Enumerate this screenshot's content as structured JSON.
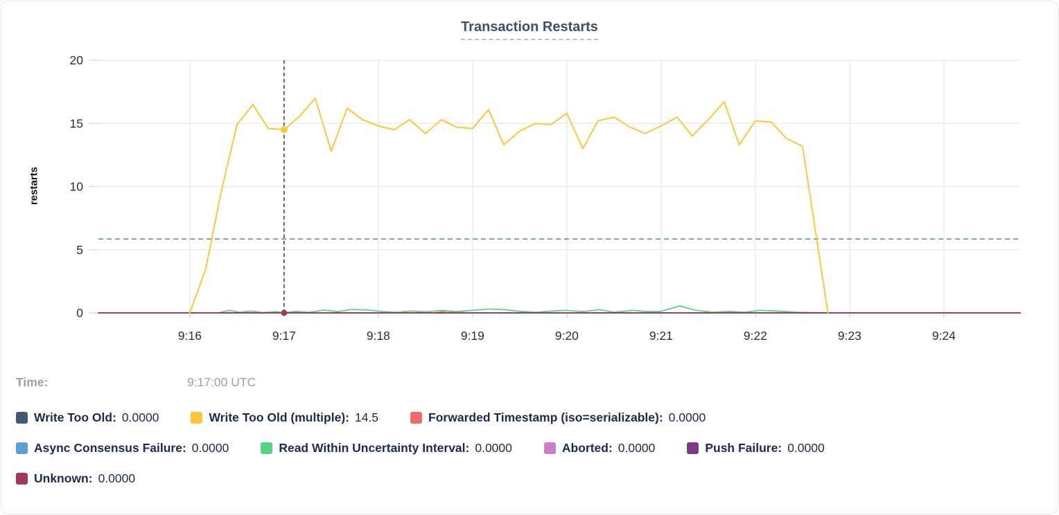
{
  "chart_data": {
    "type": "line",
    "title": "Transaction Restarts",
    "xlabel": "",
    "ylabel": "restarts",
    "ylim": [
      0,
      20
    ],
    "xlim": [
      15.03,
      24.81
    ],
    "grid": true,
    "y_ticks": [
      {
        "v": 0,
        "label": "0"
      },
      {
        "v": 5,
        "label": "5"
      },
      {
        "v": 10,
        "label": "10"
      },
      {
        "v": 15,
        "label": "15"
      },
      {
        "v": 20,
        "label": "20"
      }
    ],
    "x_ticks": [
      {
        "v": 16,
        "label": "9:16"
      },
      {
        "v": 17,
        "label": "9:17"
      },
      {
        "v": 18,
        "label": "9:18"
      },
      {
        "v": 19,
        "label": "9:19"
      },
      {
        "v": 20,
        "label": "9:20"
      },
      {
        "v": 21,
        "label": "9:21"
      },
      {
        "v": 22,
        "label": "9:22"
      },
      {
        "v": 23,
        "label": "9:23"
      },
      {
        "v": 24,
        "label": "9:24"
      }
    ],
    "threshold_line": {
      "value": 5.85,
      "style": "dashed",
      "color": "#5d82aa"
    },
    "crosshair": {
      "x": 17,
      "time": "9:17:00 UTC",
      "color": "#2c4a63",
      "points": [
        {
          "x": 17,
          "y": 14.5,
          "color": "#fdc53a",
          "r": 5
        },
        {
          "x": 17,
          "y": 0,
          "color": "#a23c55",
          "r": 4.5
        }
      ]
    },
    "series": [
      {
        "name": "Async Consensus Failure",
        "color": "#5c9fd8",
        "width": 1.6,
        "points": [
          [
            15.03,
            0
          ],
          [
            24.81,
            0
          ]
        ]
      },
      {
        "name": "Write Too Old",
        "color": "#475970",
        "width": 1.6,
        "points": [
          [
            15.03,
            0
          ],
          [
            24.81,
            0
          ]
        ]
      },
      {
        "name": "Aborted",
        "color": "#ce7dc8",
        "width": 1.6,
        "points": [
          [
            15.03,
            0
          ],
          [
            24.81,
            0
          ]
        ]
      },
      {
        "name": "Push Failure",
        "color": "#7c3a80",
        "width": 1.6,
        "points": [
          [
            15.03,
            0
          ],
          [
            24.81,
            0
          ]
        ]
      },
      {
        "name": "Forwarded Timestamp (iso=serializable)",
        "color": "#ef6c6c",
        "width": 1.8,
        "points": [
          [
            15.03,
            0
          ],
          [
            18.6,
            0
          ],
          [
            18.72,
            0.15
          ],
          [
            18.85,
            0.05
          ],
          [
            18.95,
            0
          ],
          [
            24.81,
            0
          ]
        ]
      },
      {
        "name": "Read Within Uncertainty Interval",
        "color": "#55d38a",
        "width": 1.8,
        "points": [
          [
            15.03,
            0
          ],
          [
            16.3,
            0
          ],
          [
            16.42,
            0.2
          ],
          [
            16.53,
            0.05
          ],
          [
            16.65,
            0.15
          ],
          [
            16.78,
            0.02
          ],
          [
            16.92,
            0.1
          ],
          [
            17,
            0
          ],
          [
            17.12,
            0.12
          ],
          [
            17.27,
            0.05
          ],
          [
            17.42,
            0.22
          ],
          [
            17.57,
            0.1
          ],
          [
            17.72,
            0.27
          ],
          [
            17.9,
            0.22
          ],
          [
            18.05,
            0.1
          ],
          [
            18.2,
            0.05
          ],
          [
            18.35,
            0.15
          ],
          [
            18.5,
            0.08
          ],
          [
            18.67,
            0.2
          ],
          [
            18.82,
            0.1
          ],
          [
            19,
            0.2
          ],
          [
            19.17,
            0.3
          ],
          [
            19.33,
            0.25
          ],
          [
            19.5,
            0.12
          ],
          [
            19.67,
            0.05
          ],
          [
            19.85,
            0.15
          ],
          [
            20,
            0.2
          ],
          [
            20.17,
            0.1
          ],
          [
            20.35,
            0.25
          ],
          [
            20.5,
            0.05
          ],
          [
            20.7,
            0.2
          ],
          [
            20.85,
            0.1
          ],
          [
            21,
            0.12
          ],
          [
            21.2,
            0.55
          ],
          [
            21.37,
            0.2
          ],
          [
            21.55,
            0.05
          ],
          [
            21.72,
            0.12
          ],
          [
            21.88,
            0.05
          ],
          [
            22.05,
            0.2
          ],
          [
            22.22,
            0.15
          ],
          [
            22.45,
            0.05
          ],
          [
            22.8,
            0
          ]
        ]
      },
      {
        "name": "Unknown",
        "color": "#a23c55",
        "width": 2,
        "points": [
          [
            15.03,
            0
          ],
          [
            24.81,
            0
          ]
        ]
      },
      {
        "name": "Write Too Old (multiple)",
        "color": "#fdc53a",
        "width": 2,
        "points": [
          [
            16,
            0
          ],
          [
            16.17,
            3.5
          ],
          [
            16.33,
            9.5
          ],
          [
            16.5,
            14.9
          ],
          [
            16.67,
            16.5
          ],
          [
            16.83,
            14.6
          ],
          [
            17,
            14.5
          ],
          [
            17.17,
            15.6
          ],
          [
            17.33,
            17
          ],
          [
            17.5,
            12.8
          ],
          [
            17.67,
            16.2
          ],
          [
            17.83,
            15.3
          ],
          [
            18,
            14.8
          ],
          [
            18.17,
            14.5
          ],
          [
            18.33,
            15.3
          ],
          [
            18.5,
            14.2
          ],
          [
            18.67,
            15.3
          ],
          [
            18.83,
            14.7
          ],
          [
            19,
            14.6
          ],
          [
            19.17,
            16.1
          ],
          [
            19.33,
            13.3
          ],
          [
            19.5,
            14.4
          ],
          [
            19.67,
            15
          ],
          [
            19.83,
            14.9
          ],
          [
            20,
            15.8
          ],
          [
            20.17,
            13
          ],
          [
            20.33,
            15.2
          ],
          [
            20.5,
            15.5
          ],
          [
            20.67,
            14.7
          ],
          [
            20.83,
            14.2
          ],
          [
            21,
            14.8
          ],
          [
            21.17,
            15.5
          ],
          [
            21.33,
            14
          ],
          [
            21.5,
            15.3
          ],
          [
            21.67,
            16.7
          ],
          [
            21.83,
            13.3
          ],
          [
            22,
            15.2
          ],
          [
            22.17,
            15.1
          ],
          [
            22.33,
            13.8
          ],
          [
            22.5,
            13.2
          ],
          [
            22.77,
            0
          ]
        ]
      }
    ]
  },
  "tooltip": {
    "time_label": "Time:",
    "time_value": "9:17:00 UTC"
  },
  "legend": {
    "rows": [
      [
        {
          "label": "Write Too Old",
          "value": "0.0000",
          "color": "#475970"
        },
        {
          "label": "Write Too Old (multiple)",
          "value": "14.5",
          "color": "#fdc53a"
        },
        {
          "label": "Forwarded Timestamp (iso=serializable)",
          "value": "0.0000",
          "color": "#ef6c6c"
        }
      ],
      [
        {
          "label": "Async Consensus Failure",
          "value": "0.0000",
          "color": "#5c9fd8"
        },
        {
          "label": "Read Within Uncertainty Interval",
          "value": "0.0000",
          "color": "#55d38a"
        },
        {
          "label": "Aborted",
          "value": "0.0000",
          "color": "#ce7dc8"
        },
        {
          "label": "Push Failure",
          "value": "0.0000",
          "color": "#7c3a80"
        }
      ],
      [
        {
          "label": "Unknown",
          "value": "0.0000",
          "color": "#a23c55"
        }
      ]
    ]
  }
}
